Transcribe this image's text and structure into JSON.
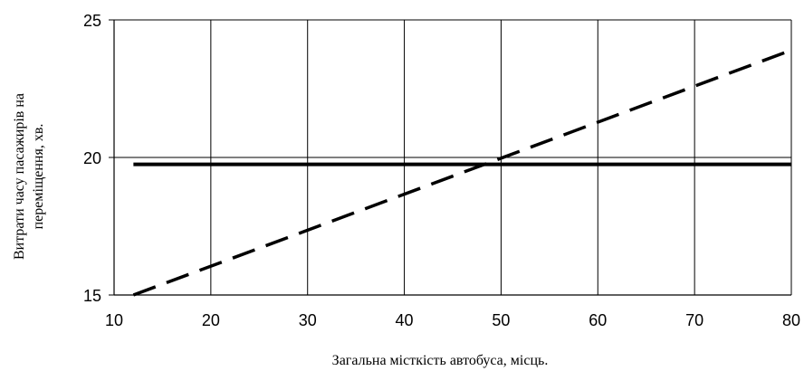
{
  "chart_data": {
    "type": "line",
    "xlabel": "Загальна місткість  автобуса, місць.",
    "ylabel_lines": [
      "Витрати часу  пасажирів на",
      "переміщення, хв."
    ],
    "xlim": [
      10,
      80
    ],
    "ylim": [
      15,
      25
    ],
    "x_ticks": [
      10,
      20,
      30,
      40,
      50,
      60,
      70,
      80
    ],
    "y_ticks": [
      15,
      20,
      25
    ],
    "grid": "vertical",
    "series": [
      {
        "style": "solid",
        "color": "#000000",
        "x": [
          12,
          80
        ],
        "y": [
          19.75,
          19.75
        ]
      },
      {
        "style": "dashed",
        "color": "#000000",
        "x": [
          12,
          80
        ],
        "y": [
          15.0,
          23.9
        ]
      }
    ]
  }
}
